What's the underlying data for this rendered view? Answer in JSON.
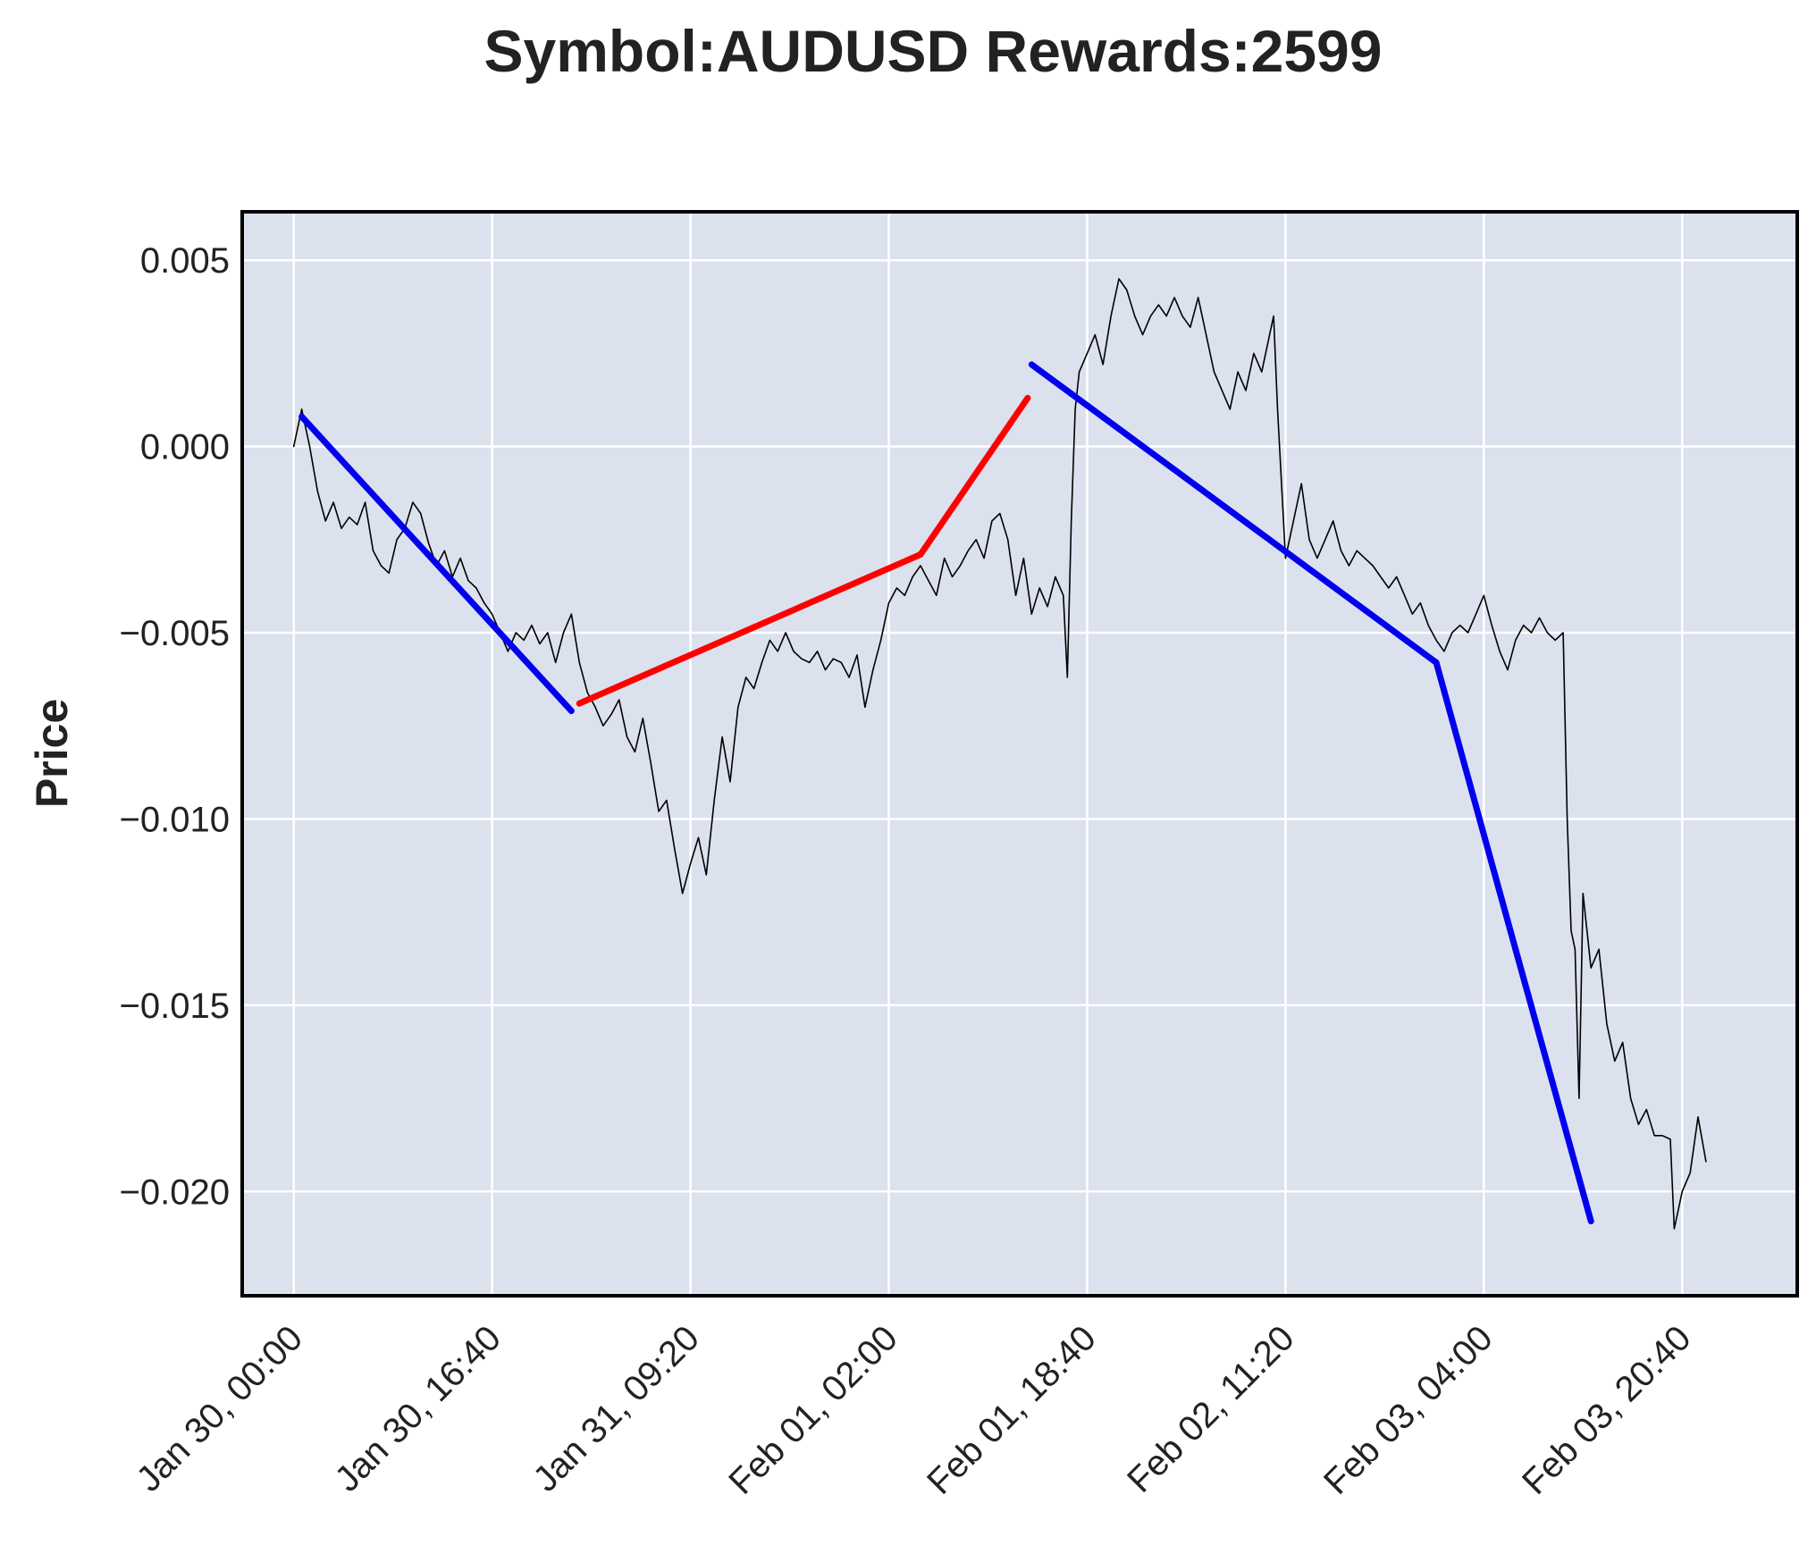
{
  "chart_data": {
    "type": "line",
    "title": "Symbol:AUDUSD   Rewards:2599",
    "ylabel": "Price",
    "xlabel": "",
    "ylim": [
      -0.0228,
      0.0063
    ],
    "yticks": [
      0.005,
      0.0,
      -0.005,
      -0.01,
      -0.015,
      -0.02
    ],
    "ytick_labels": [
      "0.005",
      "0.000",
      "−0.005",
      "−0.010",
      "−0.015",
      "−0.020"
    ],
    "xlim": [
      "Jan 29, 19:40",
      "Feb 04, 06:20"
    ],
    "xticks": [
      "Jan 30, 00:00",
      "Jan 30, 16:40",
      "Jan 31, 09:20",
      "Feb 01, 02:00",
      "Feb 01, 18:40",
      "Feb 02, 11:20",
      "Feb 03, 04:00",
      "Feb 03, 20:40"
    ],
    "grid": true,
    "background": "#dce1ee",
    "series": [
      {
        "color": "#000000",
        "points": [
          [
            "Jan 30, 00:00",
            0.0
          ],
          [
            "Jan 30, 00:40",
            0.001
          ],
          [
            "Jan 30, 01:20",
            0.0
          ],
          [
            "Jan 30, 02:00",
            -0.0012
          ],
          [
            "Jan 30, 02:40",
            -0.002
          ],
          [
            "Jan 30, 03:20",
            -0.0015
          ],
          [
            "Jan 30, 04:00",
            -0.0022
          ],
          [
            "Jan 30, 04:40",
            -0.0019
          ],
          [
            "Jan 30, 05:20",
            -0.0021
          ],
          [
            "Jan 30, 06:00",
            -0.0015
          ],
          [
            "Jan 30, 06:40",
            -0.0028
          ],
          [
            "Jan 30, 07:20",
            -0.0032
          ],
          [
            "Jan 30, 08:00",
            -0.0034
          ],
          [
            "Jan 30, 08:40",
            -0.0025
          ],
          [
            "Jan 30, 09:20",
            -0.0022
          ],
          [
            "Jan 30, 10:00",
            -0.0015
          ],
          [
            "Jan 30, 10:40",
            -0.0018
          ],
          [
            "Jan 30, 11:20",
            -0.0026
          ],
          [
            "Jan 30, 12:00",
            -0.0032
          ],
          [
            "Jan 30, 12:40",
            -0.0028
          ],
          [
            "Jan 30, 13:20",
            -0.0035
          ],
          [
            "Jan 30, 14:00",
            -0.003
          ],
          [
            "Jan 30, 14:40",
            -0.0036
          ],
          [
            "Jan 30, 15:20",
            -0.0038
          ],
          [
            "Jan 30, 16:00",
            -0.0042
          ],
          [
            "Jan 30, 16:40",
            -0.0045
          ],
          [
            "Jan 30, 17:20",
            -0.005
          ],
          [
            "Jan 30, 18:00",
            -0.0055
          ],
          [
            "Jan 30, 18:40",
            -0.005
          ],
          [
            "Jan 30, 19:20",
            -0.0052
          ],
          [
            "Jan 30, 20:00",
            -0.0048
          ],
          [
            "Jan 30, 20:40",
            -0.0053
          ],
          [
            "Jan 30, 21:20",
            -0.005
          ],
          [
            "Jan 30, 22:00",
            -0.0058
          ],
          [
            "Jan 30, 22:40",
            -0.005
          ],
          [
            "Jan 30, 23:20",
            -0.0045
          ],
          [
            "Jan 31, 00:00",
            -0.0058
          ],
          [
            "Jan 31, 00:40",
            -0.0066
          ],
          [
            "Jan 31, 01:20",
            -0.007
          ],
          [
            "Jan 31, 02:00",
            -0.0075
          ],
          [
            "Jan 31, 02:40",
            -0.0072
          ],
          [
            "Jan 31, 03:20",
            -0.0068
          ],
          [
            "Jan 31, 04:00",
            -0.0078
          ],
          [
            "Jan 31, 04:40",
            -0.0082
          ],
          [
            "Jan 31, 05:20",
            -0.0073
          ],
          [
            "Jan 31, 06:00",
            -0.0085
          ],
          [
            "Jan 31, 06:40",
            -0.0098
          ],
          [
            "Jan 31, 07:20",
            -0.0095
          ],
          [
            "Jan 31, 08:00",
            -0.0108
          ],
          [
            "Jan 31, 08:40",
            -0.012
          ],
          [
            "Jan 31, 09:20",
            -0.0112
          ],
          [
            "Jan 31, 10:00",
            -0.0105
          ],
          [
            "Jan 31, 10:40",
            -0.0115
          ],
          [
            "Jan 31, 11:20",
            -0.0095
          ],
          [
            "Jan 31, 12:00",
            -0.0078
          ],
          [
            "Jan 31, 12:40",
            -0.009
          ],
          [
            "Jan 31, 13:20",
            -0.007
          ],
          [
            "Jan 31, 14:00",
            -0.0062
          ],
          [
            "Jan 31, 14:40",
            -0.0065
          ],
          [
            "Jan 31, 15:20",
            -0.0058
          ],
          [
            "Jan 31, 16:00",
            -0.0052
          ],
          [
            "Jan 31, 16:40",
            -0.0055
          ],
          [
            "Jan 31, 17:20",
            -0.005
          ],
          [
            "Jan 31, 18:00",
            -0.0055
          ],
          [
            "Jan 31, 18:40",
            -0.0057
          ],
          [
            "Jan 31, 19:20",
            -0.0058
          ],
          [
            "Jan 31, 20:00",
            -0.0055
          ],
          [
            "Jan 31, 20:40",
            -0.006
          ],
          [
            "Jan 31, 21:20",
            -0.0057
          ],
          [
            "Jan 31, 22:00",
            -0.0058
          ],
          [
            "Jan 31, 22:40",
            -0.0062
          ],
          [
            "Jan 31, 23:20",
            -0.0056
          ],
          [
            "Feb 01, 00:00",
            -0.007
          ],
          [
            "Feb 01, 00:40",
            -0.006
          ],
          [
            "Feb 01, 01:20",
            -0.0052
          ],
          [
            "Feb 01, 02:00",
            -0.0042
          ],
          [
            "Feb 01, 02:40",
            -0.0038
          ],
          [
            "Feb 01, 03:20",
            -0.004
          ],
          [
            "Feb 01, 04:00",
            -0.0035
          ],
          [
            "Feb 01, 04:40",
            -0.0032
          ],
          [
            "Feb 01, 05:20",
            -0.0036
          ],
          [
            "Feb 01, 06:00",
            -0.004
          ],
          [
            "Feb 01, 06:40",
            -0.003
          ],
          [
            "Feb 01, 07:20",
            -0.0035
          ],
          [
            "Feb 01, 08:00",
            -0.0032
          ],
          [
            "Feb 01, 08:40",
            -0.0028
          ],
          [
            "Feb 01, 09:20",
            -0.0025
          ],
          [
            "Feb 01, 10:00",
            -0.003
          ],
          [
            "Feb 01, 10:40",
            -0.002
          ],
          [
            "Feb 01, 11:20",
            -0.0018
          ],
          [
            "Feb 01, 12:00",
            -0.0025
          ],
          [
            "Feb 01, 12:40",
            -0.004
          ],
          [
            "Feb 01, 13:20",
            -0.003
          ],
          [
            "Feb 01, 14:00",
            -0.0045
          ],
          [
            "Feb 01, 14:40",
            -0.0038
          ],
          [
            "Feb 01, 15:20",
            -0.0043
          ],
          [
            "Feb 01, 16:00",
            -0.0035
          ],
          [
            "Feb 01, 16:40",
            -0.004
          ],
          [
            "Feb 01, 17:00",
            -0.0062
          ],
          [
            "Feb 01, 17:20",
            -0.002
          ],
          [
            "Feb 01, 17:40",
            0.001
          ],
          [
            "Feb 01, 18:00",
            0.002
          ],
          [
            "Feb 01, 18:40",
            0.0025
          ],
          [
            "Feb 01, 19:20",
            0.003
          ],
          [
            "Feb 01, 20:00",
            0.0022
          ],
          [
            "Feb 01, 20:40",
            0.0035
          ],
          [
            "Feb 01, 21:20",
            0.0045
          ],
          [
            "Feb 01, 22:00",
            0.0042
          ],
          [
            "Feb 01, 22:40",
            0.0035
          ],
          [
            "Feb 01, 23:20",
            0.003
          ],
          [
            "Feb 02, 00:00",
            0.0035
          ],
          [
            "Feb 02, 00:40",
            0.0038
          ],
          [
            "Feb 02, 01:20",
            0.0035
          ],
          [
            "Feb 02, 02:00",
            0.004
          ],
          [
            "Feb 02, 02:40",
            0.0035
          ],
          [
            "Feb 02, 03:20",
            0.0032
          ],
          [
            "Feb 02, 04:00",
            0.004
          ],
          [
            "Feb 02, 04:40",
            0.003
          ],
          [
            "Feb 02, 05:20",
            0.002
          ],
          [
            "Feb 02, 06:00",
            0.0015
          ],
          [
            "Feb 02, 06:40",
            0.001
          ],
          [
            "Feb 02, 07:20",
            0.002
          ],
          [
            "Feb 02, 08:00",
            0.0015
          ],
          [
            "Feb 02, 08:40",
            0.0025
          ],
          [
            "Feb 02, 09:20",
            0.002
          ],
          [
            "Feb 02, 10:00",
            0.003
          ],
          [
            "Feb 02, 10:20",
            0.0035
          ],
          [
            "Feb 02, 10:40",
            0.001
          ],
          [
            "Feb 02, 11:20",
            -0.003
          ],
          [
            "Feb 02, 12:00",
            -0.002
          ],
          [
            "Feb 02, 12:40",
            -0.001
          ],
          [
            "Feb 02, 13:20",
            -0.0025
          ],
          [
            "Feb 02, 14:00",
            -0.003
          ],
          [
            "Feb 02, 14:40",
            -0.0025
          ],
          [
            "Feb 02, 15:20",
            -0.002
          ],
          [
            "Feb 02, 16:00",
            -0.0028
          ],
          [
            "Feb 02, 16:40",
            -0.0032
          ],
          [
            "Feb 02, 17:20",
            -0.0028
          ],
          [
            "Feb 02, 18:00",
            -0.003
          ],
          [
            "Feb 02, 18:40",
            -0.0032
          ],
          [
            "Feb 02, 19:20",
            -0.0035
          ],
          [
            "Feb 02, 20:00",
            -0.0038
          ],
          [
            "Feb 02, 20:40",
            -0.0035
          ],
          [
            "Feb 02, 21:20",
            -0.004
          ],
          [
            "Feb 02, 22:00",
            -0.0045
          ],
          [
            "Feb 02, 22:40",
            -0.0042
          ],
          [
            "Feb 02, 23:20",
            -0.0048
          ],
          [
            "Feb 03, 00:00",
            -0.0052
          ],
          [
            "Feb 03, 00:40",
            -0.0055
          ],
          [
            "Feb 03, 01:20",
            -0.005
          ],
          [
            "Feb 03, 02:00",
            -0.0048
          ],
          [
            "Feb 03, 02:40",
            -0.005
          ],
          [
            "Feb 03, 03:20",
            -0.0045
          ],
          [
            "Feb 03, 04:00",
            -0.004
          ],
          [
            "Feb 03, 04:40",
            -0.0048
          ],
          [
            "Feb 03, 05:20",
            -0.0055
          ],
          [
            "Feb 03, 06:00",
            -0.006
          ],
          [
            "Feb 03, 06:40",
            -0.0052
          ],
          [
            "Feb 03, 07:20",
            -0.0048
          ],
          [
            "Feb 03, 08:00",
            -0.005
          ],
          [
            "Feb 03, 08:40",
            -0.0046
          ],
          [
            "Feb 03, 09:20",
            -0.005
          ],
          [
            "Feb 03, 10:00",
            -0.0052
          ],
          [
            "Feb 03, 10:40",
            -0.005
          ],
          [
            "Feb 03, 11:00",
            -0.01
          ],
          [
            "Feb 03, 11:20",
            -0.013
          ],
          [
            "Feb 03, 11:40",
            -0.0135
          ],
          [
            "Feb 03, 12:00",
            -0.0175
          ],
          [
            "Feb 03, 12:20",
            -0.012
          ],
          [
            "Feb 03, 13:00",
            -0.014
          ],
          [
            "Feb 03, 13:40",
            -0.0135
          ],
          [
            "Feb 03, 14:20",
            -0.0155
          ],
          [
            "Feb 03, 15:00",
            -0.0165
          ],
          [
            "Feb 03, 15:40",
            -0.016
          ],
          [
            "Feb 03, 16:20",
            -0.0175
          ],
          [
            "Feb 03, 17:00",
            -0.0182
          ],
          [
            "Feb 03, 17:40",
            -0.0178
          ],
          [
            "Feb 03, 18:20",
            -0.0185
          ],
          [
            "Feb 03, 19:00",
            -0.0185
          ],
          [
            "Feb 03, 19:40",
            -0.0186
          ],
          [
            "Feb 03, 20:00",
            -0.021
          ],
          [
            "Feb 03, 20:40",
            -0.02
          ],
          [
            "Feb 03, 21:20",
            -0.0195
          ],
          [
            "Feb 03, 22:00",
            -0.018
          ],
          [
            "Feb 03, 22:40",
            -0.0192
          ]
        ]
      },
      {
        "color": "#0000ee",
        "points": [
          [
            "Jan 30, 00:40",
            0.0008
          ],
          [
            "Jan 30, 23:20",
            -0.0071
          ]
        ]
      },
      {
        "color": "#ff0000",
        "points": [
          [
            "Jan 31, 00:00",
            -0.0069
          ],
          [
            "Feb 01, 04:40",
            -0.0029
          ]
        ]
      },
      {
        "color": "#ff0000",
        "points": [
          [
            "Feb 01, 04:40",
            -0.0029
          ],
          [
            "Feb 01, 13:40",
            0.0013
          ]
        ]
      },
      {
        "color": "#0000ee",
        "points": [
          [
            "Feb 01, 14:00",
            0.0022
          ],
          [
            "Feb 03, 00:00",
            -0.0058
          ]
        ]
      },
      {
        "color": "#0000ee",
        "points": [
          [
            "Feb 03, 00:00",
            -0.0058
          ],
          [
            "Feb 03, 06:40",
            -0.0135
          ]
        ]
      },
      {
        "color": "#0000ee",
        "points": [
          [
            "Feb 03, 06:40",
            -0.0135
          ],
          [
            "Feb 03, 13:00",
            -0.0208
          ]
        ]
      }
    ]
  }
}
